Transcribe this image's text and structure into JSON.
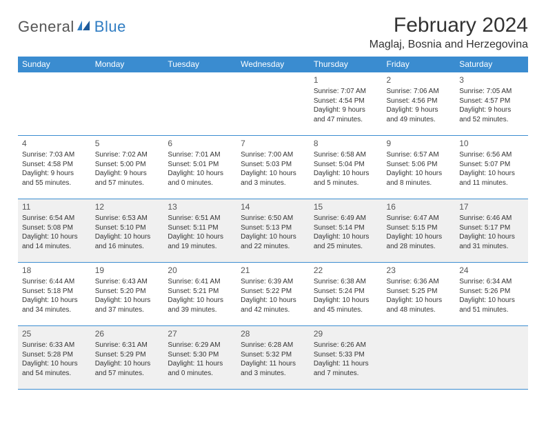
{
  "logo": {
    "text1": "General",
    "text2": "Blue"
  },
  "title": "February 2024",
  "location": "Maglaj, Bosnia and Herzegovina",
  "colors": {
    "header_bg": "#3a8cd0",
    "header_fg": "#ffffff",
    "shaded_bg": "#f0f0f0",
    "brand_blue": "#2f7cc2",
    "text": "#333333"
  },
  "dayHeaders": [
    "Sunday",
    "Monday",
    "Tuesday",
    "Wednesday",
    "Thursday",
    "Friday",
    "Saturday"
  ],
  "weeks": [
    [
      null,
      null,
      null,
      null,
      {
        "n": "1",
        "sr": "7:07 AM",
        "ss": "4:54 PM",
        "dl": "9 hours and 47 minutes."
      },
      {
        "n": "2",
        "sr": "7:06 AM",
        "ss": "4:56 PM",
        "dl": "9 hours and 49 minutes."
      },
      {
        "n": "3",
        "sr": "7:05 AM",
        "ss": "4:57 PM",
        "dl": "9 hours and 52 minutes."
      }
    ],
    [
      {
        "n": "4",
        "sr": "7:03 AM",
        "ss": "4:58 PM",
        "dl": "9 hours and 55 minutes."
      },
      {
        "n": "5",
        "sr": "7:02 AM",
        "ss": "5:00 PM",
        "dl": "9 hours and 57 minutes."
      },
      {
        "n": "6",
        "sr": "7:01 AM",
        "ss": "5:01 PM",
        "dl": "10 hours and 0 minutes."
      },
      {
        "n": "7",
        "sr": "7:00 AM",
        "ss": "5:03 PM",
        "dl": "10 hours and 3 minutes."
      },
      {
        "n": "8",
        "sr": "6:58 AM",
        "ss": "5:04 PM",
        "dl": "10 hours and 5 minutes."
      },
      {
        "n": "9",
        "sr": "6:57 AM",
        "ss": "5:06 PM",
        "dl": "10 hours and 8 minutes."
      },
      {
        "n": "10",
        "sr": "6:56 AM",
        "ss": "5:07 PM",
        "dl": "10 hours and 11 minutes."
      }
    ],
    [
      {
        "n": "11",
        "sr": "6:54 AM",
        "ss": "5:08 PM",
        "dl": "10 hours and 14 minutes."
      },
      {
        "n": "12",
        "sr": "6:53 AM",
        "ss": "5:10 PM",
        "dl": "10 hours and 16 minutes."
      },
      {
        "n": "13",
        "sr": "6:51 AM",
        "ss": "5:11 PM",
        "dl": "10 hours and 19 minutes."
      },
      {
        "n": "14",
        "sr": "6:50 AM",
        "ss": "5:13 PM",
        "dl": "10 hours and 22 minutes."
      },
      {
        "n": "15",
        "sr": "6:49 AM",
        "ss": "5:14 PM",
        "dl": "10 hours and 25 minutes."
      },
      {
        "n": "16",
        "sr": "6:47 AM",
        "ss": "5:15 PM",
        "dl": "10 hours and 28 minutes."
      },
      {
        "n": "17",
        "sr": "6:46 AM",
        "ss": "5:17 PM",
        "dl": "10 hours and 31 minutes."
      }
    ],
    [
      {
        "n": "18",
        "sr": "6:44 AM",
        "ss": "5:18 PM",
        "dl": "10 hours and 34 minutes."
      },
      {
        "n": "19",
        "sr": "6:43 AM",
        "ss": "5:20 PM",
        "dl": "10 hours and 37 minutes."
      },
      {
        "n": "20",
        "sr": "6:41 AM",
        "ss": "5:21 PM",
        "dl": "10 hours and 39 minutes."
      },
      {
        "n": "21",
        "sr": "6:39 AM",
        "ss": "5:22 PM",
        "dl": "10 hours and 42 minutes."
      },
      {
        "n": "22",
        "sr": "6:38 AM",
        "ss": "5:24 PM",
        "dl": "10 hours and 45 minutes."
      },
      {
        "n": "23",
        "sr": "6:36 AM",
        "ss": "5:25 PM",
        "dl": "10 hours and 48 minutes."
      },
      {
        "n": "24",
        "sr": "6:34 AM",
        "ss": "5:26 PM",
        "dl": "10 hours and 51 minutes."
      }
    ],
    [
      {
        "n": "25",
        "sr": "6:33 AM",
        "ss": "5:28 PM",
        "dl": "10 hours and 54 minutes."
      },
      {
        "n": "26",
        "sr": "6:31 AM",
        "ss": "5:29 PM",
        "dl": "10 hours and 57 minutes."
      },
      {
        "n": "27",
        "sr": "6:29 AM",
        "ss": "5:30 PM",
        "dl": "11 hours and 0 minutes."
      },
      {
        "n": "28",
        "sr": "6:28 AM",
        "ss": "5:32 PM",
        "dl": "11 hours and 3 minutes."
      },
      {
        "n": "29",
        "sr": "6:26 AM",
        "ss": "5:33 PM",
        "dl": "11 hours and 7 minutes."
      },
      null,
      null
    ]
  ],
  "shadedRows": [
    2,
    4
  ],
  "labels": {
    "sunrise": "Sunrise: ",
    "sunset": "Sunset: ",
    "daylight": "Daylight: "
  }
}
